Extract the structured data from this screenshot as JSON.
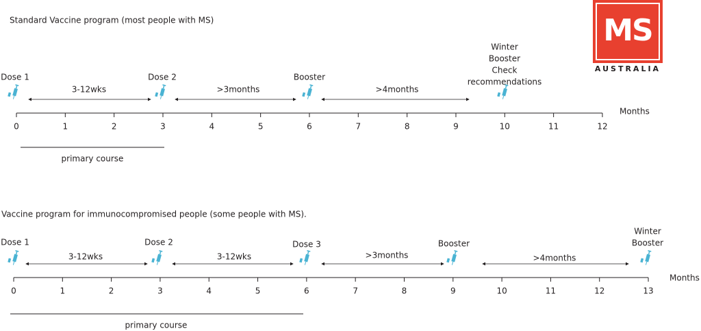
{
  "logo": {
    "mark": "MS",
    "name": "AUSTRALIA"
  },
  "timelines": [
    {
      "title": "Standard Vaccine program (most people with MS)",
      "axis_label": "Months",
      "ticks": [
        0,
        1,
        2,
        3,
        4,
        5,
        6,
        7,
        8,
        9,
        10,
        11,
        12
      ],
      "events": [
        {
          "label": [
            "Dose 1"
          ]
        },
        {
          "label": [
            "Dose 2"
          ]
        },
        {
          "label": [
            "Booster"
          ]
        },
        {
          "label": [
            "Winter",
            "Booster",
            "Check",
            "recommendations"
          ]
        }
      ],
      "intervals": [
        "3-12wks",
        ">3months",
        ">4months"
      ],
      "course": "primary course"
    },
    {
      "title": "Vaccine program for immunocompromised people (some people with MS).",
      "axis_label": "Months",
      "ticks": [
        0,
        1,
        2,
        3,
        4,
        5,
        6,
        7,
        8,
        9,
        10,
        11,
        12,
        13
      ],
      "events": [
        {
          "label": [
            "Dose 1"
          ]
        },
        {
          "label": [
            "Dose 2"
          ]
        },
        {
          "label": [
            "Dose 3"
          ]
        },
        {
          "label": [
            "Booster"
          ]
        },
        {
          "label": [
            "Winter",
            "Booster"
          ]
        }
      ],
      "intervals": [
        "3-12wks",
        "3-12wks",
        ">3months",
        ">4months"
      ],
      "course": "primary course"
    }
  ]
}
